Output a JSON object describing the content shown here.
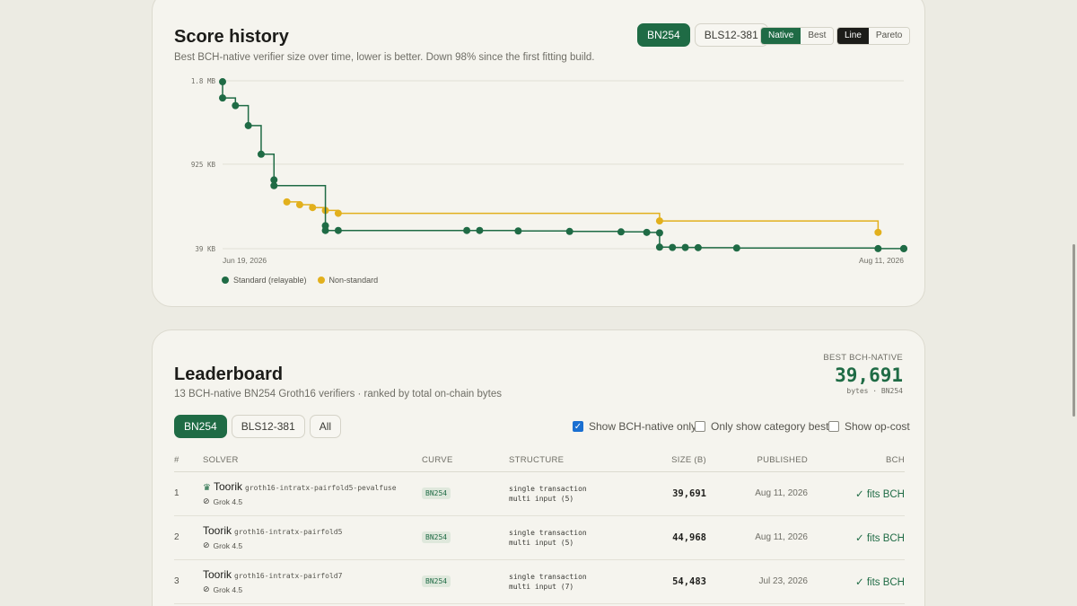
{
  "history": {
    "title": "Score history",
    "subtitle": "Best BCH-native verifier size over time, lower is better. Down 98% since the first fitting build.",
    "curve_tabs": [
      {
        "label": "BN254",
        "active": true
      },
      {
        "label": "BLS12-381",
        "active": false
      }
    ],
    "mode_toggle": [
      {
        "label": "Native",
        "active": true
      },
      {
        "label": "Best",
        "active": false
      }
    ],
    "view_toggle": [
      {
        "label": "Line",
        "active": true
      },
      {
        "label": "Pareto",
        "active": false
      }
    ],
    "legend": [
      {
        "label": "Standard (relayable)",
        "color": "#1f6b45"
      },
      {
        "label": "Non-standard",
        "color": "#e2b01d"
      }
    ]
  },
  "chart_data": {
    "type": "line",
    "y_tick_labels": [
      "1.8 MB",
      "925 KB",
      "39 KB"
    ],
    "y_ticks": [
      1800,
      925,
      39
    ],
    "ylim": [
      39,
      1800
    ],
    "xlim": [
      "2026-06-19",
      "2026-08-11"
    ],
    "x_tick_labels": [
      "Jun 19, 2026",
      "Aug 11, 2026"
    ],
    "grid": true,
    "legend_position": "bottom-left",
    "series": [
      {
        "name": "Standard (relayable)",
        "color": "#1f6b45",
        "x": [
          "2026-06-19",
          "2026-06-19",
          "2026-06-20",
          "2026-06-21",
          "2026-06-22",
          "2026-06-23",
          "2026-06-23",
          "2026-06-27",
          "2026-06-27",
          "2026-06-28",
          "2026-07-08",
          "2026-07-09",
          "2026-07-12",
          "2026-07-16",
          "2026-07-20",
          "2026-07-22",
          "2026-07-23",
          "2026-07-23",
          "2026-07-24",
          "2026-07-25",
          "2026-07-26",
          "2026-07-29",
          "2026-08-09",
          "2026-08-11",
          "2026-08-11"
        ],
        "y": [
          1790,
          1620,
          1540,
          1330,
          1030,
          760,
          700,
          280,
          230,
          230,
          230,
          230,
          225,
          220,
          215,
          210,
          205,
          55,
          52,
          52,
          50,
          46,
          40,
          39.7,
          39.7
        ]
      },
      {
        "name": "Non-standard",
        "color": "#e2b01d",
        "x": [
          "2026-06-24",
          "2026-06-25",
          "2026-06-26",
          "2026-06-27",
          "2026-06-28",
          "2026-07-23",
          "2026-08-09"
        ],
        "y": [
          530,
          500,
          470,
          440,
          410,
          330,
          210
        ]
      }
    ]
  },
  "leaderboard": {
    "title": "Leaderboard",
    "subtitle": "13 BCH-native BN254 Groth16 verifiers · ranked by total on-chain bytes",
    "best_label": "BEST BCH-NATIVE",
    "best_value": "39,691",
    "best_unit": "bytes · BN254",
    "tabs": [
      {
        "label": "BN254",
        "active": true
      },
      {
        "label": "BLS12-381",
        "active": false
      },
      {
        "label": "All",
        "active": false
      }
    ],
    "filters": [
      {
        "label": "Show BCH-native only",
        "checked": true
      },
      {
        "label": "Only show category best",
        "checked": false
      },
      {
        "label": "Show op-cost",
        "checked": false
      }
    ],
    "columns": [
      "#",
      "SOLVER",
      "CURVE",
      "STRUCTURE",
      "SIZE (B)",
      "PUBLISHED",
      "BCH"
    ],
    "rows": [
      {
        "rank": "1",
        "name": "Toorik",
        "slug": "groth16-intratx-pairfold5-pevalfuse",
        "model": "Grok 4.5",
        "crown": true,
        "curve": "BN254",
        "structure1": "single transaction",
        "structure2": "multi input (5)",
        "size": "39,691",
        "published": "Aug 11, 2026",
        "bch": "✓ fits BCH"
      },
      {
        "rank": "2",
        "name": "Toorik",
        "slug": "groth16-intratx-pairfold5",
        "model": "Grok 4.5",
        "crown": false,
        "curve": "BN254",
        "structure1": "single transaction",
        "structure2": "multi input (5)",
        "size": "44,968",
        "published": "Aug 11, 2026",
        "bch": "✓ fits BCH"
      },
      {
        "rank": "3",
        "name": "Toorik",
        "slug": "groth16-intratx-pairfold7",
        "model": "Grok 4.5",
        "crown": false,
        "curve": "BN254",
        "structure1": "single transaction",
        "structure2": "multi input (7)",
        "size": "54,483",
        "published": "Jul 23, 2026",
        "bch": "✓ fits BCH"
      }
    ]
  }
}
